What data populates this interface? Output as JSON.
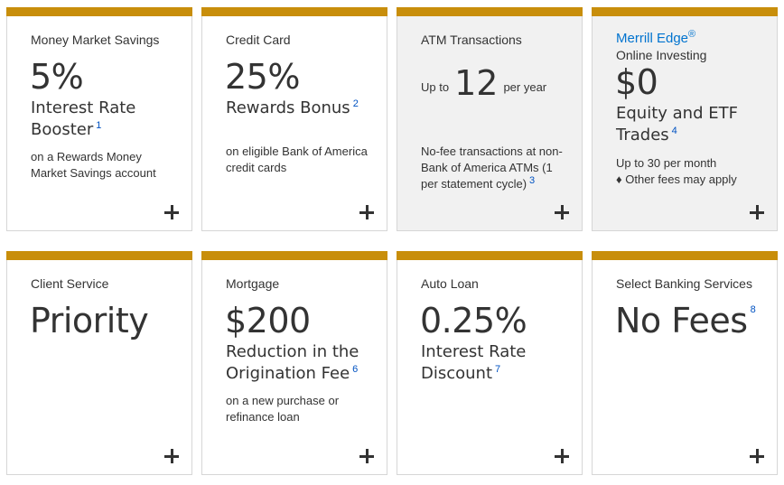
{
  "colors": {
    "accent_bar": "#c88e0b",
    "footnote_link": "#0052c2",
    "merrill_brand": "#0073cf",
    "shaded_card": "#f1f1f1"
  },
  "cards": [
    {
      "title": "Money Market Savings",
      "big": "5%",
      "sub": "Interest Rate Booster",
      "footnote": "1",
      "desc": "on a Rewards Money Market Savings account",
      "icon": "plus-icon"
    },
    {
      "title": "Credit Card",
      "big": "25%",
      "sub": "Rewards Bonus",
      "footnote": "2",
      "desc": "on eligible Bank of America credit cards",
      "icon": "plus-icon"
    },
    {
      "title": "ATM Transactions",
      "prefix": "Up to",
      "big": "12",
      "suffix": "per year",
      "desc": "No-fee transactions at non-Bank of America ATMs (1 per statement cycle)",
      "footnote": "3",
      "icon": "plus-icon"
    },
    {
      "brand": "Merrill Edge",
      "brand_mark": "®",
      "title": "Online Investing",
      "big": "$0",
      "sub": "Equity and ETF Trades",
      "footnote": "4",
      "desc1": "Up to 30 per month",
      "desc2": "♦ Other fees may apply",
      "icon": "plus-icon"
    },
    {
      "title": "Client Service",
      "big": "Priority",
      "icon": "plus-icon"
    },
    {
      "title": "Mortgage",
      "big": "$200",
      "sub": "Reduction in the Origination Fee",
      "footnote": "6",
      "desc": "on a new purchase or refinance loan",
      "icon": "plus-icon"
    },
    {
      "title": "Auto Loan",
      "big": "0.25%",
      "sub": "Interest Rate Discount",
      "footnote": "7",
      "icon": "plus-icon"
    },
    {
      "title": "Select Banking Services",
      "big": "No Fees",
      "footnote": "8",
      "icon": "plus-icon"
    }
  ]
}
